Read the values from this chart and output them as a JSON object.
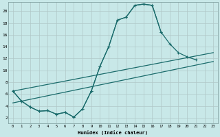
{
  "xlabel": "Humidex (Indice chaleur)",
  "background_color": "#c8e8e8",
  "grid_color": "#b0c8c8",
  "line_color": "#1a6b6b",
  "xlim": [
    -0.5,
    23.5
  ],
  "ylim": [
    1.0,
    21.5
  ],
  "xticks": [
    0,
    1,
    2,
    3,
    4,
    5,
    6,
    7,
    8,
    9,
    10,
    11,
    12,
    13,
    14,
    15,
    16,
    17,
    18,
    19,
    20,
    21,
    22,
    23
  ],
  "yticks": [
    2,
    4,
    6,
    8,
    10,
    12,
    14,
    16,
    18,
    20
  ],
  "curve1_x": [
    0,
    1,
    2,
    3,
    4,
    5,
    6,
    7,
    8,
    9,
    10,
    11,
    12,
    13,
    14,
    15,
    16,
    17
  ],
  "curve1_y": [
    6.5,
    4.8,
    3.8,
    3.1,
    3.2,
    2.6,
    2.9,
    2.1,
    3.5,
    6.5,
    10.7,
    14.0,
    18.5,
    19.0,
    21.0,
    21.2,
    21.0,
    16.5
  ],
  "curve2_x": [
    0,
    1,
    2,
    3,
    4,
    5,
    6,
    7,
    8,
    9,
    10,
    11,
    12,
    13,
    14,
    15,
    16,
    17,
    18,
    19,
    20,
    21
  ],
  "curve2_y": [
    6.5,
    4.8,
    3.8,
    3.1,
    3.2,
    2.6,
    2.9,
    2.1,
    3.5,
    6.5,
    10.7,
    14.0,
    18.5,
    19.0,
    21.0,
    21.2,
    21.0,
    16.5,
    14.5,
    13.0,
    12.3,
    11.8
  ],
  "trend1_x": [
    0,
    23
  ],
  "trend1_y": [
    4.5,
    11.5
  ],
  "trend2_x": [
    0,
    23
  ],
  "trend2_y": [
    6.5,
    13.0
  ]
}
